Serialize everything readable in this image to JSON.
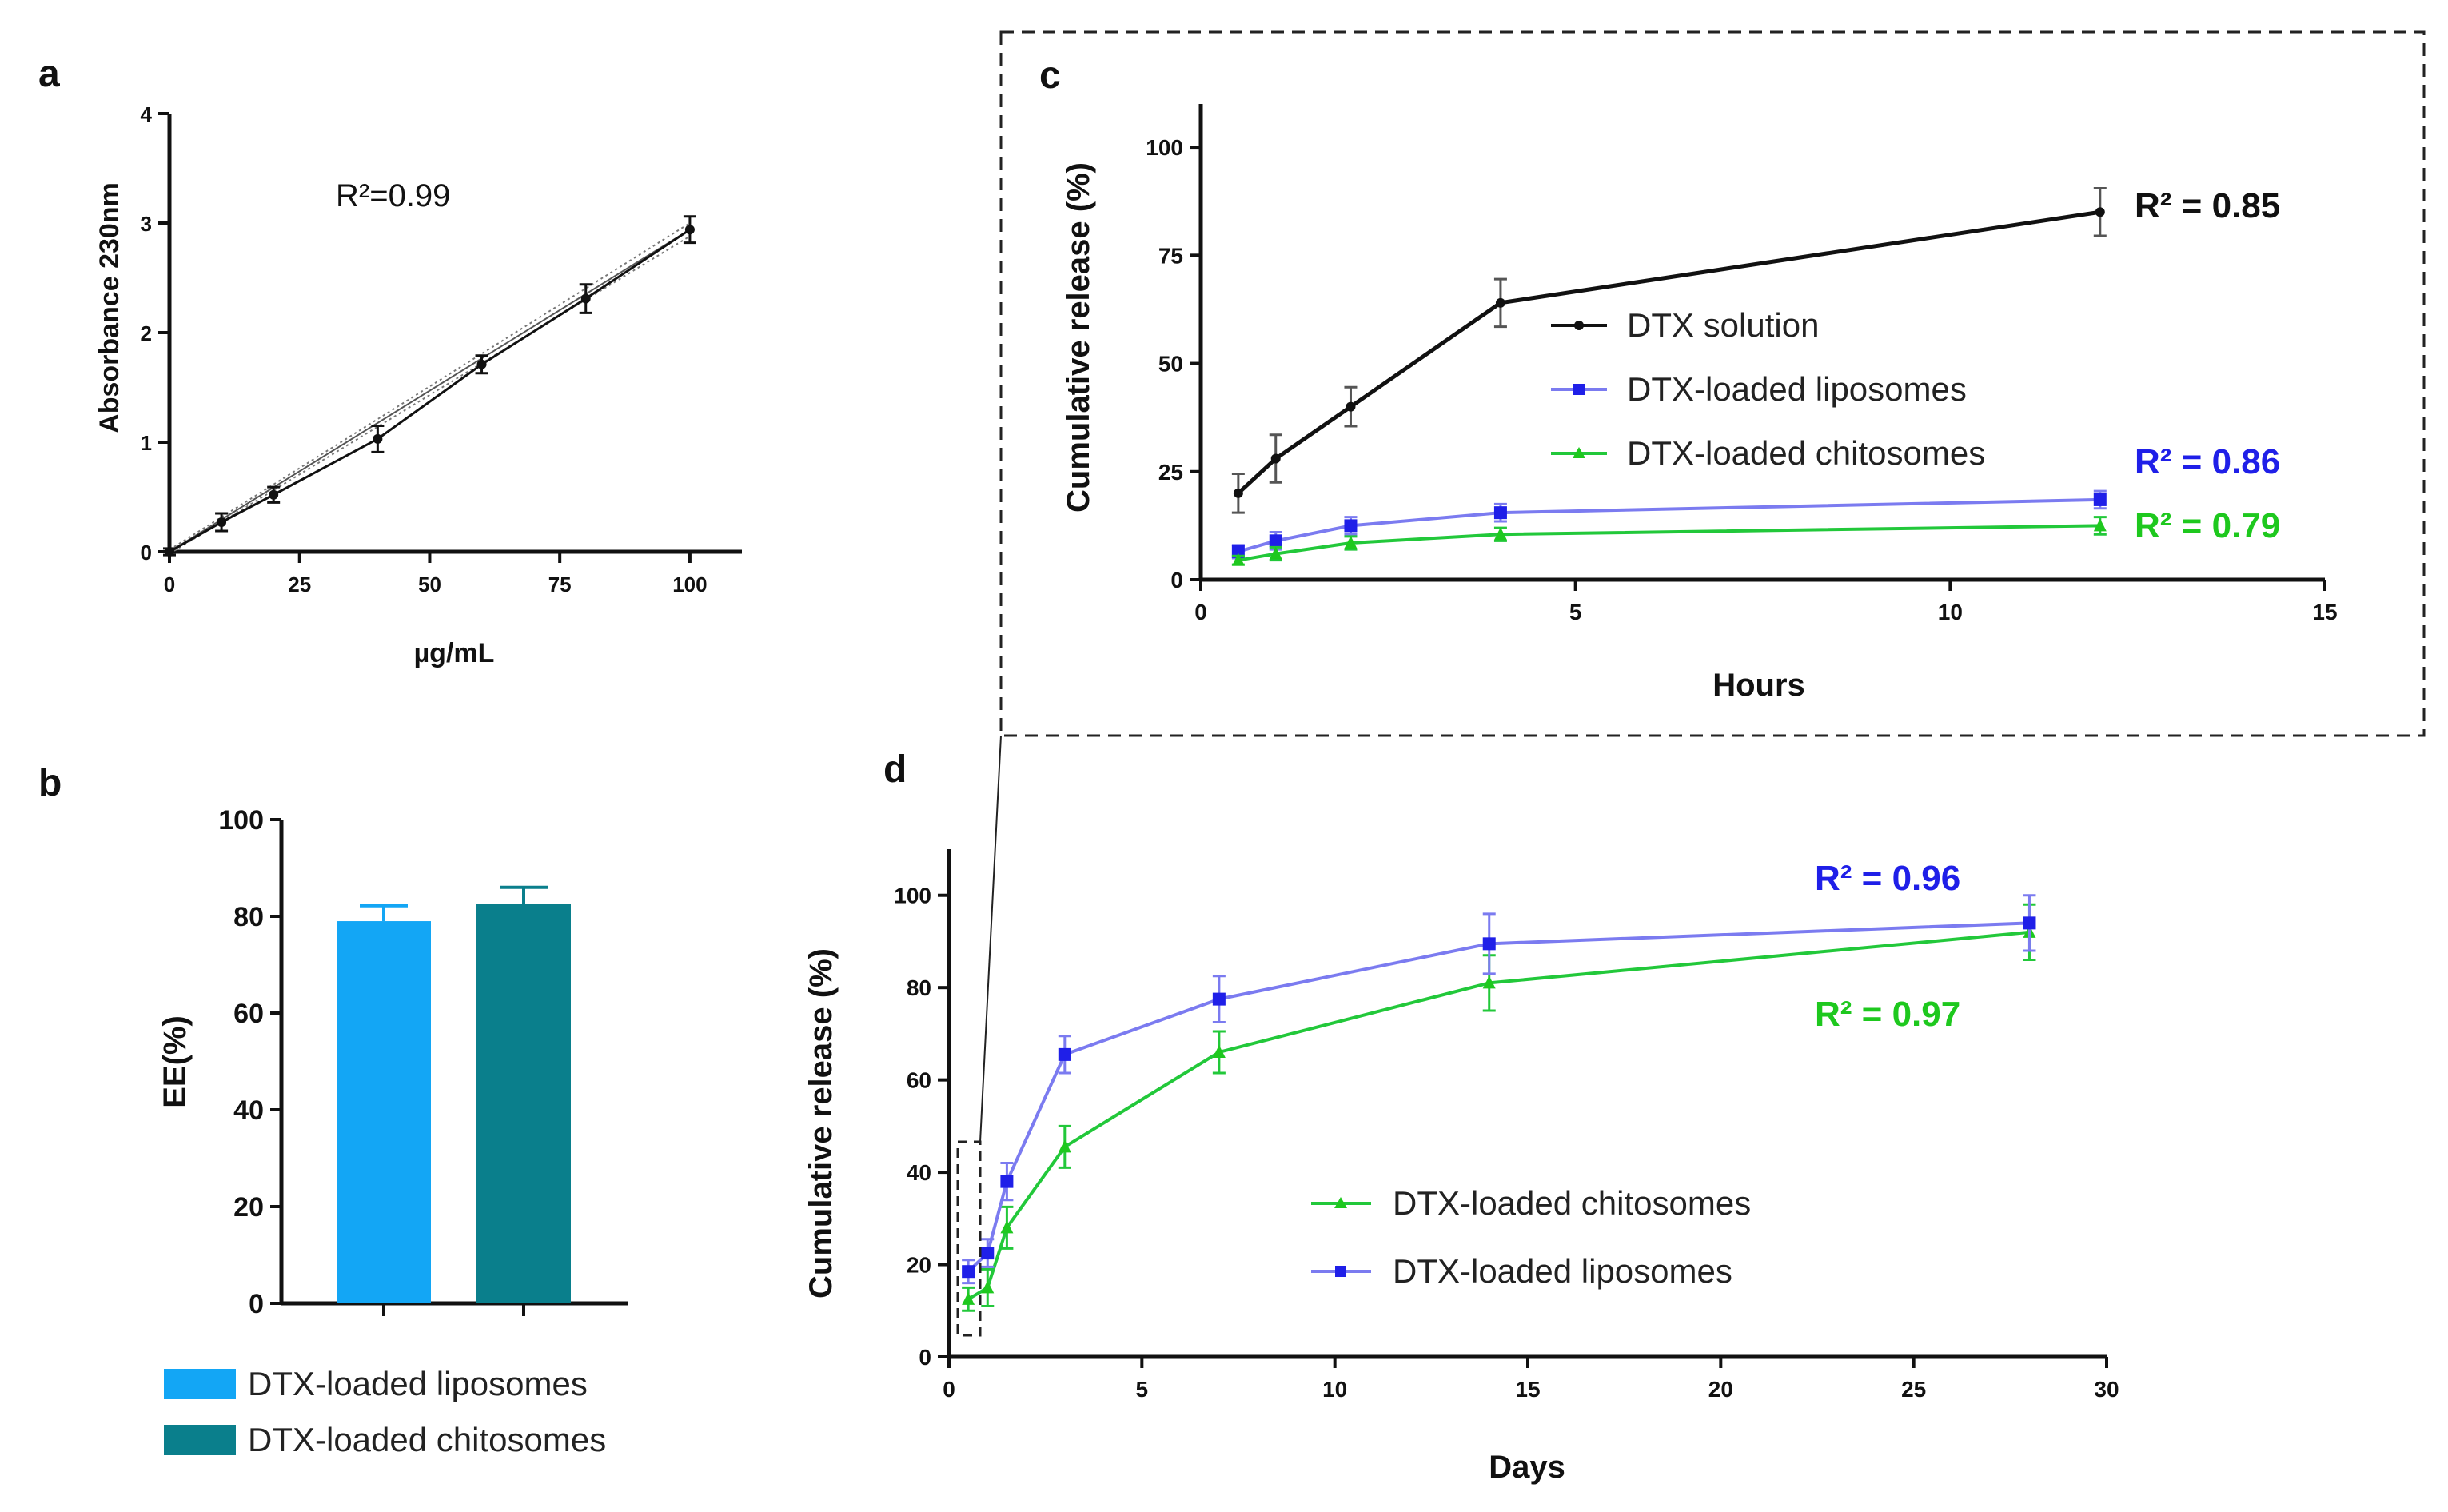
{
  "colors": {
    "black": "#111111",
    "blue": "#1f1fe8",
    "blue_line": "#7b7bf0",
    "green": "#1ec81e",
    "green_line": "#22c83a",
    "liposome_bar": "#13a6f5",
    "chitosome_bar": "#0a7f8c",
    "r2_black": "#111111",
    "r2_blue": "#1f1fe8",
    "r2_green": "#1ec81e"
  },
  "panels": {
    "a": {
      "letter": "a",
      "r2_label": "R²=0.99"
    },
    "b": {
      "letter": "b"
    },
    "c": {
      "letter": "c",
      "r2": {
        "solution": "R² = 0.85",
        "liposomes": "R² = 0.86",
        "chitosomes": "R² = 0.79"
      }
    },
    "d": {
      "letter": "d",
      "r2": {
        "liposomes": "R² = 0.96",
        "chitosomes": "R² = 0.97"
      }
    }
  },
  "chart_data": [
    {
      "id": "a",
      "type": "line",
      "title": "",
      "xlabel": "µg/mL",
      "ylabel": "Absorbance 230nm",
      "xlim": [
        0,
        110
      ],
      "ylim": [
        0,
        4
      ],
      "xticks": [
        0,
        25,
        50,
        75,
        100
      ],
      "yticks": [
        0,
        1,
        2,
        3,
        4
      ],
      "series": [
        {
          "name": "Absorbance",
          "x": [
            0,
            10,
            20,
            40,
            60,
            80,
            100
          ],
          "y": [
            0.0,
            0.27,
            0.52,
            1.03,
            1.71,
            2.31,
            2.94
          ],
          "err": [
            0.03,
            0.08,
            0.07,
            0.12,
            0.08,
            0.13,
            0.12
          ]
        }
      ],
      "fit": {
        "x": [
          0,
          100
        ],
        "y": [
          0.0,
          2.94
        ],
        "band": 0.06
      },
      "annotation": "R²=0.99"
    },
    {
      "id": "b",
      "type": "bar",
      "title": "",
      "xlabel": "",
      "ylabel": "EE(%)",
      "ylim": [
        0,
        100
      ],
      "yticks": [
        0,
        20,
        40,
        60,
        80,
        100
      ],
      "categories": [
        "DTX-loaded liposomes",
        "DTX-loaded chitosomes"
      ],
      "values": [
        79,
        82.5
      ],
      "err": [
        3.2,
        3.5
      ],
      "legend": [
        "DTX-loaded liposomes",
        "DTX-loaded chitosomes"
      ],
      "legend_position": "bottom"
    },
    {
      "id": "c",
      "type": "line",
      "title": "",
      "xlabel": "Hours",
      "ylabel": "Cumulative release (%)",
      "xlim": [
        0,
        15
      ],
      "ylim": [
        0,
        110
      ],
      "xticks": [
        0,
        5,
        10,
        15
      ],
      "yticks": [
        0,
        25,
        50,
        75,
        100
      ],
      "series": [
        {
          "name": "DTX solution",
          "x": [
            0.5,
            1,
            2,
            4,
            12
          ],
          "y": [
            20,
            28,
            40,
            64,
            85
          ],
          "err": [
            4.5,
            5.5,
            4.5,
            5.5,
            5.5
          ]
        },
        {
          "name": "DTX-loaded liposomes",
          "x": [
            0.5,
            1,
            2,
            4,
            12
          ],
          "y": [
            6.5,
            9,
            12.5,
            15.5,
            18.5
          ],
          "err": [
            1.5,
            2,
            2,
            2,
            2
          ]
        },
        {
          "name": "DTX-loaded chitosomes",
          "x": [
            0.5,
            1,
            2,
            4,
            12
          ],
          "y": [
            4.5,
            6,
            8.5,
            10.5,
            12.5
          ],
          "err": [
            1,
            1.5,
            1.5,
            1.5,
            2
          ]
        }
      ],
      "legend": [
        "DTX solution",
        "DTX-loaded liposomes",
        "DTX-loaded chitosomes"
      ],
      "legend_position": "center"
    },
    {
      "id": "d",
      "type": "line",
      "title": "",
      "xlabel": "Days",
      "ylabel": "Cumulative release (%)",
      "xlim": [
        0,
        30
      ],
      "ylim": [
        0,
        110
      ],
      "xticks": [
        0,
        5,
        10,
        15,
        20,
        25,
        30
      ],
      "yticks": [
        0,
        20,
        40,
        60,
        80,
        100
      ],
      "series": [
        {
          "name": "DTX-loaded chitosomes",
          "x": [
            0.5,
            1,
            1.5,
            3,
            7,
            14,
            28
          ],
          "y": [
            12.5,
            15,
            28,
            45.5,
            66,
            81,
            92
          ],
          "err": [
            2.5,
            4,
            4.5,
            4.5,
            4.5,
            6,
            6
          ]
        },
        {
          "name": "DTX-loaded liposomes",
          "x": [
            0.5,
            1,
            1.5,
            3,
            7,
            14,
            28
          ],
          "y": [
            18.5,
            22.5,
            38,
            65.5,
            77.5,
            89.5,
            94
          ],
          "err": [
            2.5,
            3,
            4,
            4,
            5,
            6.5,
            6
          ]
        }
      ],
      "legend": [
        "DTX-loaded chitosomes",
        "DTX-loaded liposomes"
      ],
      "legend_position": "center"
    }
  ]
}
